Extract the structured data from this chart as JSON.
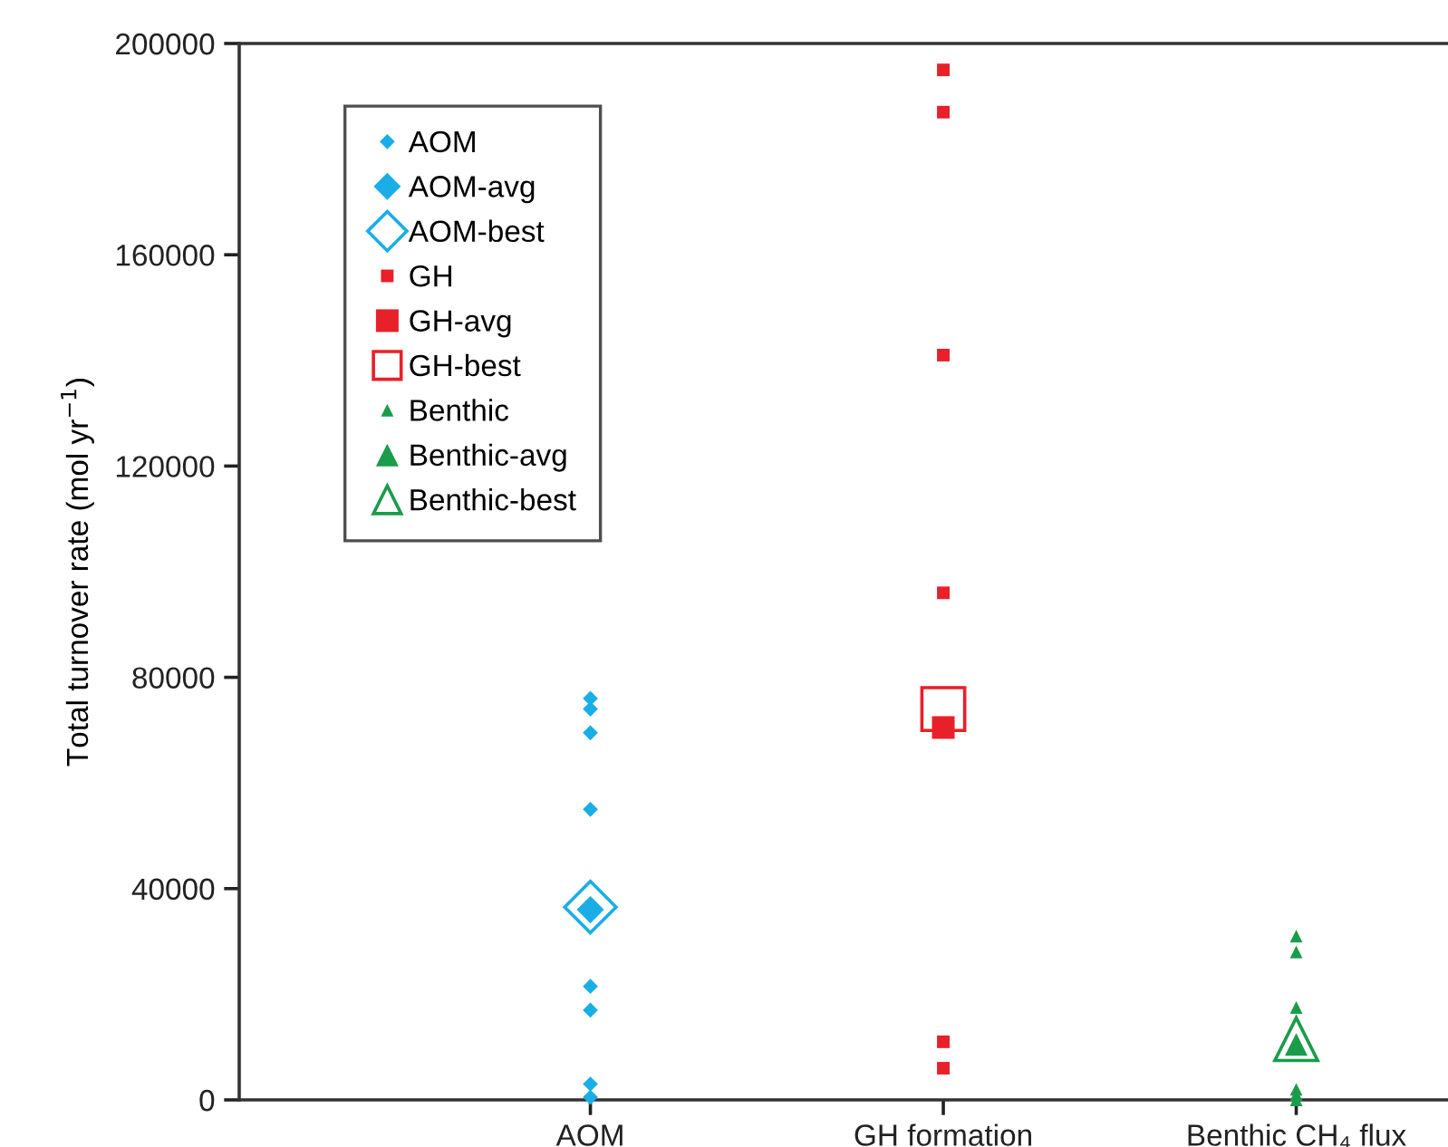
{
  "chart_data": {
    "type": "scatter",
    "ylabel": "Total turnover rate (mol yr$^{−1}$)",
    "categories": [
      "AOM",
      "GH formation",
      "Benthic CH₄ flux"
    ],
    "ylim": [
      0,
      200000
    ],
    "yticks": [
      0,
      40000,
      80000,
      120000,
      160000,
      200000
    ],
    "grid": false,
    "legend": "top left",
    "series": [
      {
        "name": "AOM",
        "color": "#1aaee6",
        "marker": "diamond",
        "x": [
          "AOM",
          "AOM",
          "AOM",
          "AOM",
          "AOM",
          "AOM",
          "AOM",
          "AOM"
        ],
        "values": [
          76000,
          74000,
          69500,
          55000,
          21500,
          17000,
          3000,
          500
        ]
      },
      {
        "name": "AOM-avg",
        "color": "#1aaee6",
        "marker": "diamond",
        "x": [
          "AOM"
        ],
        "values": [
          36000
        ]
      },
      {
        "name": "AOM-best",
        "color": "#1aaee6",
        "marker": "diamond",
        "x": [
          "AOM"
        ],
        "values": [
          36500
        ]
      },
      {
        "name": "GH",
        "color": "#e8202a",
        "marker": "square",
        "x": [
          "GH formation",
          "GH formation",
          "GH formation",
          "GH formation",
          "GH formation",
          "GH formation"
        ],
        "values": [
          195000,
          187000,
          141000,
          96000,
          11000,
          6000
        ]
      },
      {
        "name": "GH-avg",
        "color": "#e8202a",
        "marker": "square",
        "x": [
          "GH formation"
        ],
        "values": [
          70500
        ]
      },
      {
        "name": "GH-best",
        "color": "#e8202a",
        "marker": "square",
        "x": [
          "GH formation"
        ],
        "values": [
          74000
        ]
      },
      {
        "name": "Benthic",
        "color": "#1a9c4a",
        "marker": "triangle",
        "x": [
          "Benthic CH₄ flux",
          "Benthic CH₄ flux",
          "Benthic CH₄ flux",
          "Benthic CH₄ flux",
          "Benthic CH₄ flux",
          "Benthic CH₄ flux"
        ],
        "values": [
          31000,
          28000,
          17500,
          2000,
          1000,
          0
        ]
      },
      {
        "name": "Benthic-avg",
        "color": "#1a9c4a",
        "marker": "triangle",
        "x": [
          "Benthic CH₄ flux"
        ],
        "values": [
          10500
        ]
      },
      {
        "name": "Benthic-best",
        "color": "#1a9c4a",
        "marker": "triangle",
        "x": [
          "Benthic CH₄ flux"
        ],
        "values": [
          11500
        ]
      }
    ]
  }
}
